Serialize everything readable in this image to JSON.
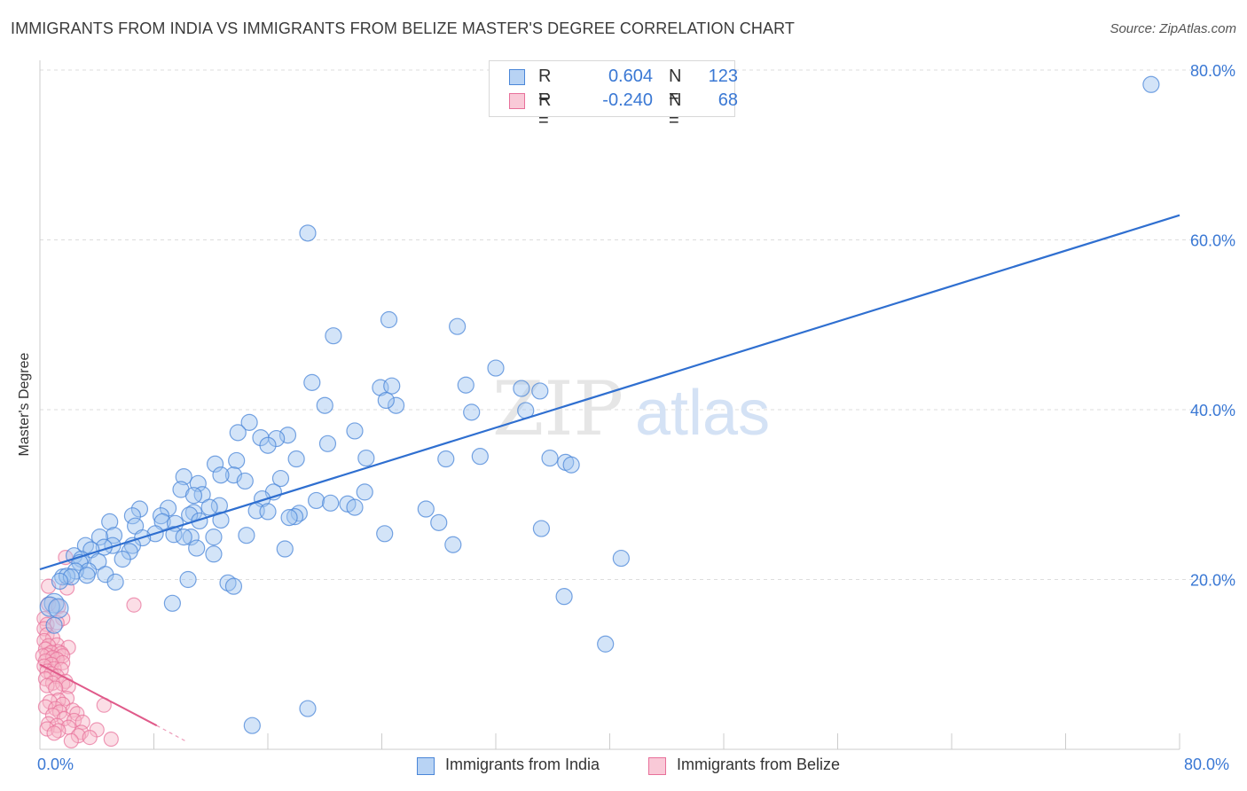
{
  "title": "IMMIGRANTS FROM INDIA VS IMMIGRANTS FROM BELIZE MASTER'S DEGREE CORRELATION CHART",
  "source": "Source: ZipAtlas.com",
  "watermark": {
    "zip": "ZIP",
    "atlas": "atlas"
  },
  "legend": {
    "india": {
      "r_label": "R =",
      "r_value": "0.604",
      "n_label": "N =",
      "n_value": "123"
    },
    "belize": {
      "r_label": "R =",
      "r_value": "-0.240",
      "n_label": "N =",
      "n_value": "68"
    }
  },
  "bottom_legend": {
    "india": "Immigrants from India",
    "belize": "Immigrants from Belize"
  },
  "colors": {
    "india_fill": "#9dc3f0",
    "india_stroke": "#4a86d8",
    "india_line": "#2f6fd0",
    "belize_fill": "#f6b6c8",
    "belize_stroke": "#e8709a",
    "belize_line": "#e05a8a",
    "axis_text": "#3a78d4",
    "grid": "#dddddd"
  },
  "chart_data": {
    "type": "scatter",
    "title": "IMMIGRANTS FROM INDIA VS IMMIGRANTS FROM BELIZE MASTER'S DEGREE CORRELATION CHART",
    "xlabel": "",
    "ylabel": "Master's Degree",
    "xlim": [
      0,
      80
    ],
    "ylim": [
      0,
      80
    ],
    "x_tick_labels": [
      "0.0%",
      "80.0%"
    ],
    "y_ticks": [
      20,
      40,
      60,
      80
    ],
    "y_tick_labels": [
      "20.0%",
      "40.0%",
      "60.0%",
      "80.0%"
    ],
    "grid": true,
    "series": [
      {
        "name": "Immigrants from India",
        "r": 0.604,
        "n": 123,
        "trendline": {
          "x": [
            0,
            80
          ],
          "y": [
            21.2,
            62.9
          ]
        },
        "points": [
          [
            78.0,
            78.3
          ],
          [
            18.8,
            60.8
          ],
          [
            24.5,
            50.6
          ],
          [
            29.3,
            49.8
          ],
          [
            20.6,
            48.7
          ],
          [
            32.0,
            44.9
          ],
          [
            19.1,
            43.2
          ],
          [
            23.9,
            42.6
          ],
          [
            24.7,
            42.8
          ],
          [
            35.1,
            42.2
          ],
          [
            29.9,
            42.9
          ],
          [
            33.8,
            42.5
          ],
          [
            20.0,
            40.5
          ],
          [
            25.0,
            40.5
          ],
          [
            24.3,
            41.1
          ],
          [
            30.3,
            39.7
          ],
          [
            34.1,
            39.9
          ],
          [
            14.7,
            38.5
          ],
          [
            13.9,
            37.3
          ],
          [
            22.1,
            37.5
          ],
          [
            17.4,
            37.0
          ],
          [
            15.5,
            36.7
          ],
          [
            16.6,
            36.6
          ],
          [
            20.2,
            36.0
          ],
          [
            16.0,
            35.8
          ],
          [
            30.9,
            34.5
          ],
          [
            35.8,
            34.3
          ],
          [
            22.9,
            34.3
          ],
          [
            28.5,
            34.2
          ],
          [
            36.9,
            33.8
          ],
          [
            37.3,
            33.5
          ],
          [
            18.0,
            34.2
          ],
          [
            13.8,
            34.0
          ],
          [
            12.3,
            33.6
          ],
          [
            13.6,
            32.3
          ],
          [
            12.7,
            32.3
          ],
          [
            10.1,
            32.1
          ],
          [
            16.9,
            31.9
          ],
          [
            14.4,
            31.6
          ],
          [
            11.1,
            31.3
          ],
          [
            9.9,
            30.6
          ],
          [
            16.4,
            30.3
          ],
          [
            22.8,
            30.3
          ],
          [
            11.4,
            30.0
          ],
          [
            10.8,
            29.9
          ],
          [
            15.6,
            29.5
          ],
          [
            19.4,
            29.3
          ],
          [
            20.4,
            29.0
          ],
          [
            21.6,
            28.9
          ],
          [
            12.6,
            28.7
          ],
          [
            11.9,
            28.5
          ],
          [
            9.0,
            28.4
          ],
          [
            7.0,
            28.3
          ],
          [
            15.2,
            28.1
          ],
          [
            16.0,
            28.0
          ],
          [
            22.1,
            28.5
          ],
          [
            18.2,
            27.8
          ],
          [
            10.8,
            27.9
          ],
          [
            10.5,
            27.6
          ],
          [
            6.5,
            27.5
          ],
          [
            8.5,
            27.5
          ],
          [
            27.1,
            28.3
          ],
          [
            12.7,
            27.0
          ],
          [
            8.6,
            26.8
          ],
          [
            9.5,
            26.6
          ],
          [
            28.0,
            26.7
          ],
          [
            17.9,
            27.4
          ],
          [
            4.9,
            26.8
          ],
          [
            11.2,
            26.9
          ],
          [
            6.7,
            26.3
          ],
          [
            35.2,
            26.0
          ],
          [
            8.1,
            25.4
          ],
          [
            9.4,
            25.3
          ],
          [
            10.6,
            25.0
          ],
          [
            5.2,
            25.2
          ],
          [
            4.2,
            25.0
          ],
          [
            12.2,
            25.0
          ],
          [
            14.5,
            25.2
          ],
          [
            24.2,
            25.4
          ],
          [
            7.2,
            24.9
          ],
          [
            10.1,
            25.0
          ],
          [
            6.5,
            24.0
          ],
          [
            17.2,
            23.6
          ],
          [
            3.2,
            24.0
          ],
          [
            5.1,
            24.0
          ],
          [
            4.5,
            23.8
          ],
          [
            6.3,
            23.3
          ],
          [
            29.0,
            24.1
          ],
          [
            3.6,
            23.5
          ],
          [
            11.0,
            23.7
          ],
          [
            17.5,
            27.3
          ],
          [
            12.2,
            23.0
          ],
          [
            2.4,
            22.8
          ],
          [
            2.9,
            22.4
          ],
          [
            5.8,
            22.4
          ],
          [
            4.1,
            22.1
          ],
          [
            2.8,
            22.0
          ],
          [
            40.8,
            22.5
          ],
          [
            3.4,
            21.0
          ],
          [
            2.5,
            21.0
          ],
          [
            1.6,
            20.3
          ],
          [
            1.9,
            20.4
          ],
          [
            2.2,
            20.3
          ],
          [
            3.3,
            20.5
          ],
          [
            4.6,
            20.6
          ],
          [
            1.4,
            19.8
          ],
          [
            5.3,
            19.7
          ],
          [
            10.4,
            20.0
          ],
          [
            13.2,
            19.6
          ],
          [
            13.6,
            19.2
          ],
          [
            36.8,
            18.0
          ],
          [
            9.3,
            17.2
          ],
          [
            1.0,
            17.2
          ],
          [
            0.7,
            16.8
          ],
          [
            1.3,
            16.6
          ],
          [
            1.0,
            14.6
          ],
          [
            39.7,
            12.4
          ],
          [
            18.8,
            4.8
          ],
          [
            14.9,
            2.8
          ]
        ]
      },
      {
        "name": "Immigrants from Belize",
        "r": -0.24,
        "n": 68,
        "trendline": {
          "x": [
            0,
            8.2
          ],
          "y": [
            10.0,
            2.8
          ]
        },
        "trendline_dashed": {
          "x": [
            8.2,
            10.3
          ],
          "y": [
            2.8,
            0.9
          ]
        },
        "points": [
          [
            1.8,
            22.6
          ],
          [
            0.6,
            19.2
          ],
          [
            1.9,
            19.0
          ],
          [
            6.6,
            17.0
          ],
          [
            0.6,
            17.1
          ],
          [
            1.3,
            16.8
          ],
          [
            1.6,
            15.4
          ],
          [
            0.3,
            15.4
          ],
          [
            0.5,
            14.7
          ],
          [
            1.2,
            14.9
          ],
          [
            0.3,
            14.2
          ],
          [
            0.5,
            13.5
          ],
          [
            0.9,
            13.1
          ],
          [
            0.3,
            12.8
          ],
          [
            1.2,
            12.3
          ],
          [
            0.6,
            12.2
          ],
          [
            2.0,
            12.0
          ],
          [
            0.4,
            11.8
          ],
          [
            1.3,
            11.5
          ],
          [
            0.8,
            11.4
          ],
          [
            1.5,
            11.3
          ],
          [
            0.5,
            11.1
          ],
          [
            1.6,
            11.0
          ],
          [
            0.2,
            11.0
          ],
          [
            0.9,
            10.8
          ],
          [
            1.2,
            10.6
          ],
          [
            0.4,
            10.4
          ],
          [
            1.6,
            10.2
          ],
          [
            0.8,
            10.0
          ],
          [
            0.3,
            9.8
          ],
          [
            1.0,
            9.5
          ],
          [
            1.5,
            9.4
          ],
          [
            0.5,
            9.2
          ],
          [
            0.8,
            8.9
          ],
          [
            1.2,
            8.6
          ],
          [
            0.4,
            8.3
          ],
          [
            1.8,
            8.0
          ],
          [
            0.9,
            7.8
          ],
          [
            1.6,
            7.7
          ],
          [
            0.5,
            7.5
          ],
          [
            2.0,
            7.4
          ],
          [
            1.1,
            7.2
          ],
          [
            1.9,
            6.0
          ],
          [
            1.3,
            5.8
          ],
          [
            0.7,
            5.6
          ],
          [
            1.6,
            5.3
          ],
          [
            0.4,
            5.0
          ],
          [
            1.1,
            4.8
          ],
          [
            2.3,
            4.6
          ],
          [
            1.4,
            4.4
          ],
          [
            2.6,
            4.2
          ],
          [
            4.5,
            5.2
          ],
          [
            0.9,
            4.0
          ],
          [
            1.7,
            3.6
          ],
          [
            2.4,
            3.4
          ],
          [
            3.0,
            3.2
          ],
          [
            0.6,
            3.0
          ],
          [
            1.2,
            2.8
          ],
          [
            2.0,
            2.6
          ],
          [
            0.5,
            2.4
          ],
          [
            1.3,
            2.2
          ],
          [
            2.9,
            2.0
          ],
          [
            4.0,
            2.3
          ],
          [
            1.0,
            1.9
          ],
          [
            2.7,
            1.6
          ],
          [
            5.0,
            1.2
          ],
          [
            3.5,
            1.4
          ],
          [
            2.2,
            1.0
          ]
        ]
      }
    ]
  }
}
